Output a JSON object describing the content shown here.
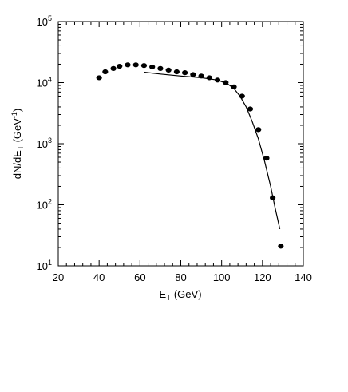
{
  "chart_data": {
    "type": "scatter",
    "xlabel": {
      "main": "E",
      "sub": "T",
      "rest": " (GeV)"
    },
    "ylabel": {
      "prefix": "dN/dE",
      "sub": "T",
      "unit_base": " (GeV",
      "unit_exp": "-1",
      "unit_close": ")"
    },
    "xlim": [
      20,
      140
    ],
    "ylim": [
      10,
      100000
    ],
    "ylog": true,
    "xticks": [
      20,
      40,
      60,
      80,
      100,
      120,
      140
    ],
    "xtick_labels": [
      "20",
      "40",
      "60",
      "80",
      "100",
      "120",
      "140"
    ],
    "yticks": [
      {
        "value": 10,
        "base": "10",
        "exp": "1"
      },
      {
        "value": 100,
        "base": "10",
        "exp": "2"
      },
      {
        "value": 1000,
        "base": "10",
        "exp": "3"
      },
      {
        "value": 10000,
        "base": "10",
        "exp": "4"
      },
      {
        "value": 100000,
        "base": "10",
        "exp": "5"
      }
    ],
    "series": [
      {
        "type": "scatter",
        "color": "#000000",
        "x": [
          40,
          43,
          47,
          50,
          54,
          58,
          62,
          66,
          70,
          74,
          78,
          82,
          86,
          90,
          94,
          98,
          102,
          106,
          110,
          114,
          118,
          122,
          125,
          129
        ],
        "y": [
          12000,
          15000,
          17000,
          18500,
          19500,
          19500,
          19000,
          18000,
          17000,
          16000,
          15000,
          14500,
          13500,
          12800,
          12000,
          11000,
          10000,
          8500,
          6000,
          3700,
          1700,
          580,
          130,
          21
        ]
      },
      {
        "type": "line",
        "color": "#000000",
        "x": [
          62,
          70,
          80,
          90,
          98,
          103,
          106,
          109,
          112,
          115,
          118,
          121,
          124,
          126,
          128.5
        ],
        "y": [
          14800,
          13800,
          12800,
          12000,
          11000,
          9500,
          8000,
          6000,
          4000,
          2300,
          1200,
          520,
          200,
          95,
          40
        ]
      }
    ]
  }
}
